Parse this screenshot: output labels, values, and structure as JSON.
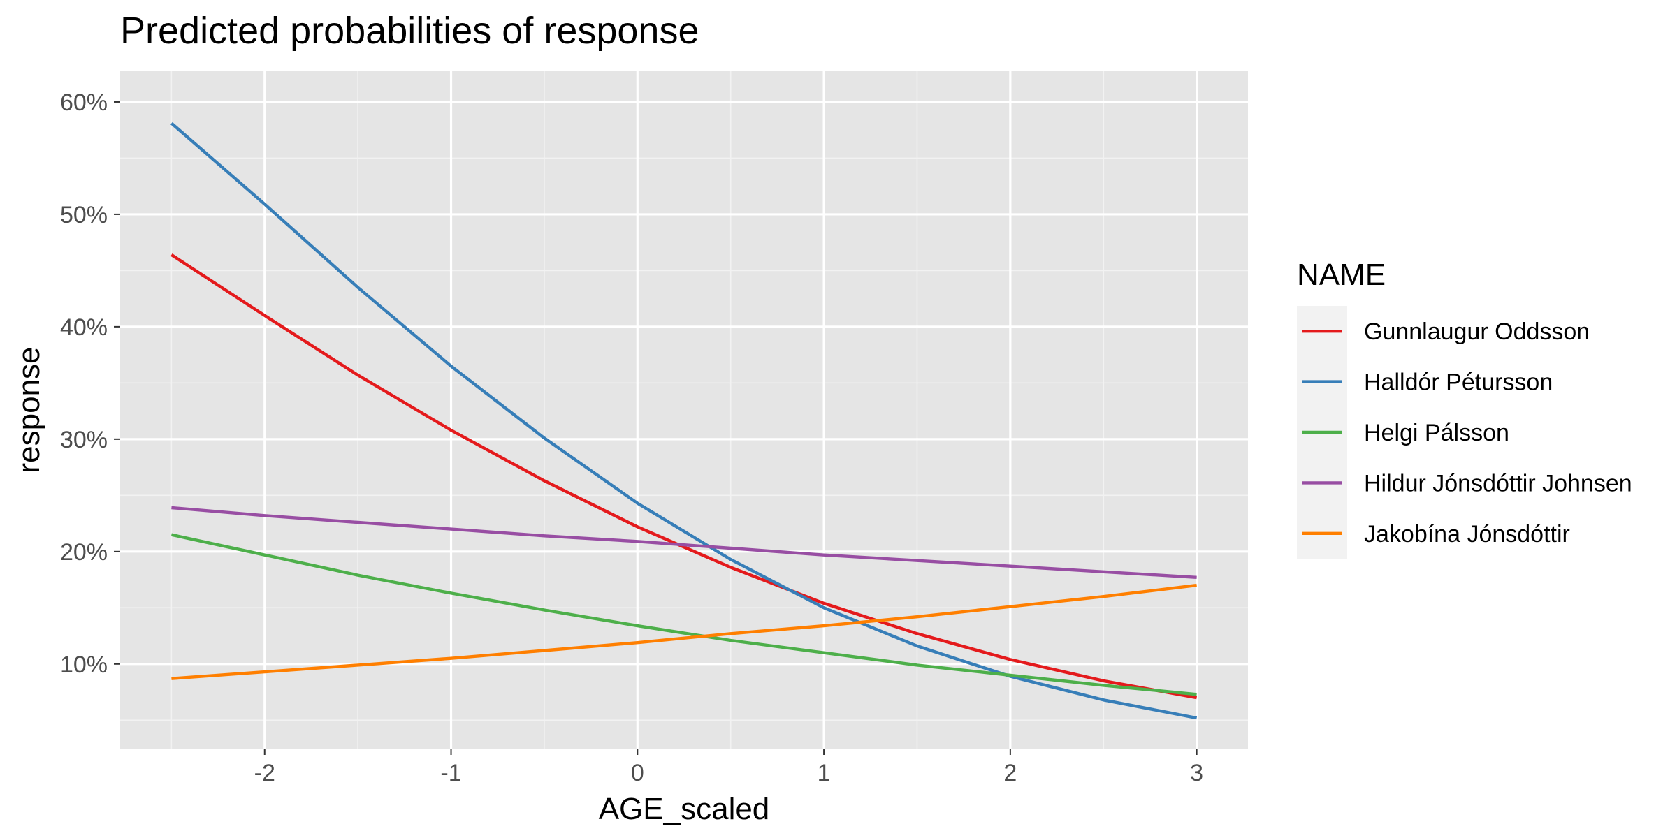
{
  "chart_data": {
    "type": "line",
    "title": "Predicted probabilities of response",
    "xlabel": "AGE_scaled",
    "ylabel": "response",
    "xlim": [
      -2.775,
      3.275
    ],
    "ylim": [
      0.0247,
      0.6273
    ],
    "x_ticks": [
      -2,
      -1,
      0,
      1,
      2,
      3
    ],
    "x_tick_labels": [
      "-2",
      "-1",
      "0",
      "1",
      "2",
      "3"
    ],
    "y_ticks": [
      0.1,
      0.2,
      0.3,
      0.4,
      0.5,
      0.6
    ],
    "y_tick_labels": [
      "10%",
      "20%",
      "30%",
      "40%",
      "50%",
      "60%"
    ],
    "grid": true,
    "legend": {
      "title": "NAME",
      "position": "right"
    },
    "x": [
      -2.5,
      -2,
      -1.5,
      -1,
      -0.5,
      0,
      0.5,
      1,
      1.5,
      2,
      2.5,
      3
    ],
    "series": [
      {
        "name": "Gunnlaugur Oddsson",
        "color": "#e41a1c",
        "values": [
          0.464,
          0.41,
          0.357,
          0.308,
          0.263,
          0.222,
          0.186,
          0.154,
          0.127,
          0.104,
          0.085,
          0.07
        ]
      },
      {
        "name": "Halldór Pétursson",
        "color": "#377eb8",
        "values": [
          0.581,
          0.509,
          0.435,
          0.365,
          0.301,
          0.243,
          0.193,
          0.15,
          0.116,
          0.089,
          0.068,
          0.052
        ]
      },
      {
        "name": "Helgi Pálsson",
        "color": "#4daf4a",
        "values": [
          0.215,
          0.197,
          0.179,
          0.163,
          0.148,
          0.134,
          0.121,
          0.11,
          0.099,
          0.09,
          0.081,
          0.073
        ]
      },
      {
        "name": "Hildur Jónsdóttir Johnsen",
        "color": "#984ea3",
        "values": [
          0.239,
          0.232,
          0.226,
          0.22,
          0.214,
          0.209,
          0.203,
          0.197,
          0.192,
          0.187,
          0.182,
          0.177
        ]
      },
      {
        "name": "Jakobína Jónsdóttir",
        "color": "#ff7f00",
        "values": [
          0.087,
          0.093,
          0.099,
          0.105,
          0.112,
          0.119,
          0.127,
          0.134,
          0.142,
          0.151,
          0.16,
          0.17
        ]
      }
    ]
  }
}
